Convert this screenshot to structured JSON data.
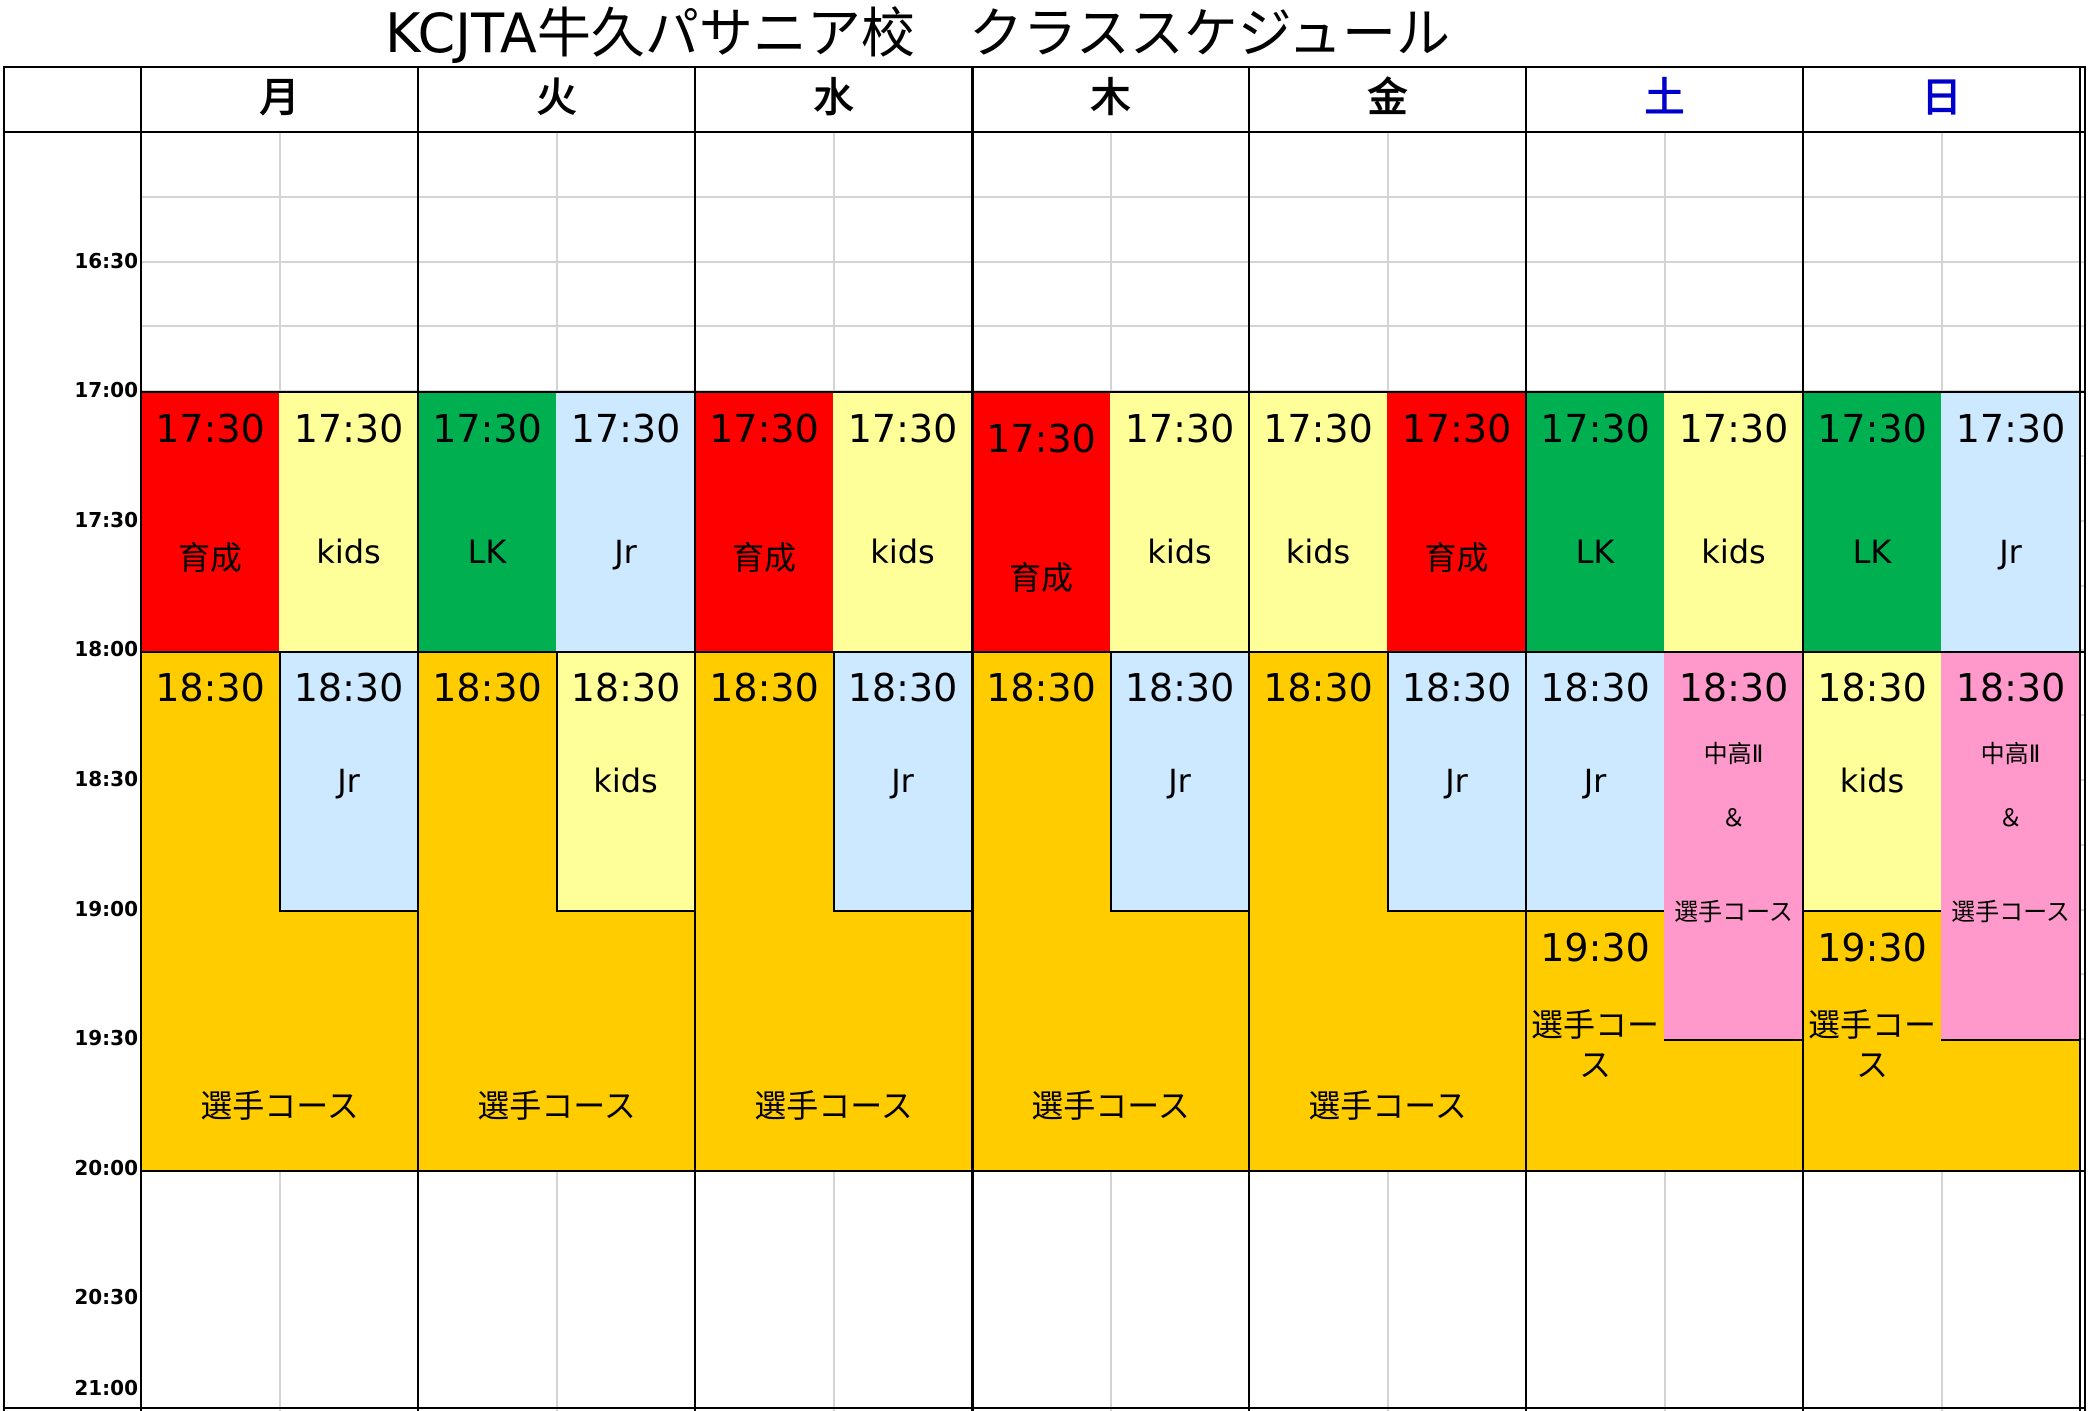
{
  "title": "KCJTA牛久パサニア校　クラススケジュール",
  "days": [
    {
      "label": "月",
      "color": "#000000"
    },
    {
      "label": "火",
      "color": "#000000"
    },
    {
      "label": "水",
      "color": "#000000"
    },
    {
      "label": "木",
      "color": "#000000"
    },
    {
      "label": "金",
      "color": "#000000"
    },
    {
      "label": "土",
      "color": "#0000cc"
    },
    {
      "label": "日",
      "color": "#0000cc"
    }
  ],
  "times": [
    "16:30",
    "17:00",
    "17:30",
    "18:00",
    "18:30",
    "19:00",
    "19:30",
    "20:00",
    "20:30",
    "21:00"
  ],
  "colors": {
    "red": "#ff0000",
    "yellow": "#ffff99",
    "green": "#00b050",
    "blue": "#cce9ff",
    "orange": "#ffcc00",
    "pink": "#ff99cc"
  },
  "slots": {
    "mon_a": {
      "time": "17:30",
      "label": "育成"
    },
    "mon_b": {
      "time": "17:30",
      "label": "kids"
    },
    "tue_a": {
      "time": "17:30",
      "label": "LK"
    },
    "tue_b": {
      "time": "17:30",
      "label": "Jr"
    },
    "wed_a": {
      "time": "17:30",
      "label": "育成"
    },
    "wed_b": {
      "time": "17:30",
      "label": "kids"
    },
    "thu_a": {
      "time": "17:30",
      "label": "育成"
    },
    "thu_b": {
      "time": "17:30",
      "label": "kids"
    },
    "fri_a": {
      "time": "17:30",
      "label": "kids"
    },
    "fri_b": {
      "time": "17:30",
      "label": "育成"
    },
    "sat_a": {
      "time": "17:30",
      "label": "LK"
    },
    "sat_b": {
      "time": "17:30",
      "label": "kids"
    },
    "sun_a": {
      "time": "17:30",
      "label": "LK"
    },
    "sun_b": {
      "time": "17:30",
      "label": "Jr"
    },
    "mon_c": {
      "time": "18:30"
    },
    "mon_d": {
      "time": "18:30",
      "label": "Jr"
    },
    "tue_c": {
      "time": "18:30"
    },
    "tue_d": {
      "time": "18:30",
      "label": "kids"
    },
    "wed_c": {
      "time": "18:30"
    },
    "wed_d": {
      "time": "18:30",
      "label": "Jr"
    },
    "thu_c": {
      "time": "18:30"
    },
    "thu_d": {
      "time": "18:30",
      "label": "Jr"
    },
    "fri_c": {
      "time": "18:30"
    },
    "fri_d": {
      "time": "18:30",
      "label": "Jr"
    },
    "sat_c": {
      "time": "18:30",
      "label": "Jr"
    },
    "sat_d": {
      "time": "18:30",
      "label1": "中高Ⅱ",
      "label2": "＆",
      "label3": "選手コース"
    },
    "sun_c": {
      "time": "18:30",
      "label": "kids"
    },
    "sun_d": {
      "time": "18:30",
      "label1": "中高Ⅱ",
      "label2": "＆",
      "label3": "選手コース"
    },
    "mon_course": "選手コース",
    "tue_course": "選手コース",
    "wed_course": "選手コース",
    "thu_course": "選手コース",
    "fri_course": "選手コース",
    "sat_course": {
      "time": "19:30",
      "label1": "選手コー",
      "label2": "ス"
    },
    "sun_course": {
      "time": "19:30",
      "label1": "選手コー",
      "label2": "ス"
    }
  }
}
